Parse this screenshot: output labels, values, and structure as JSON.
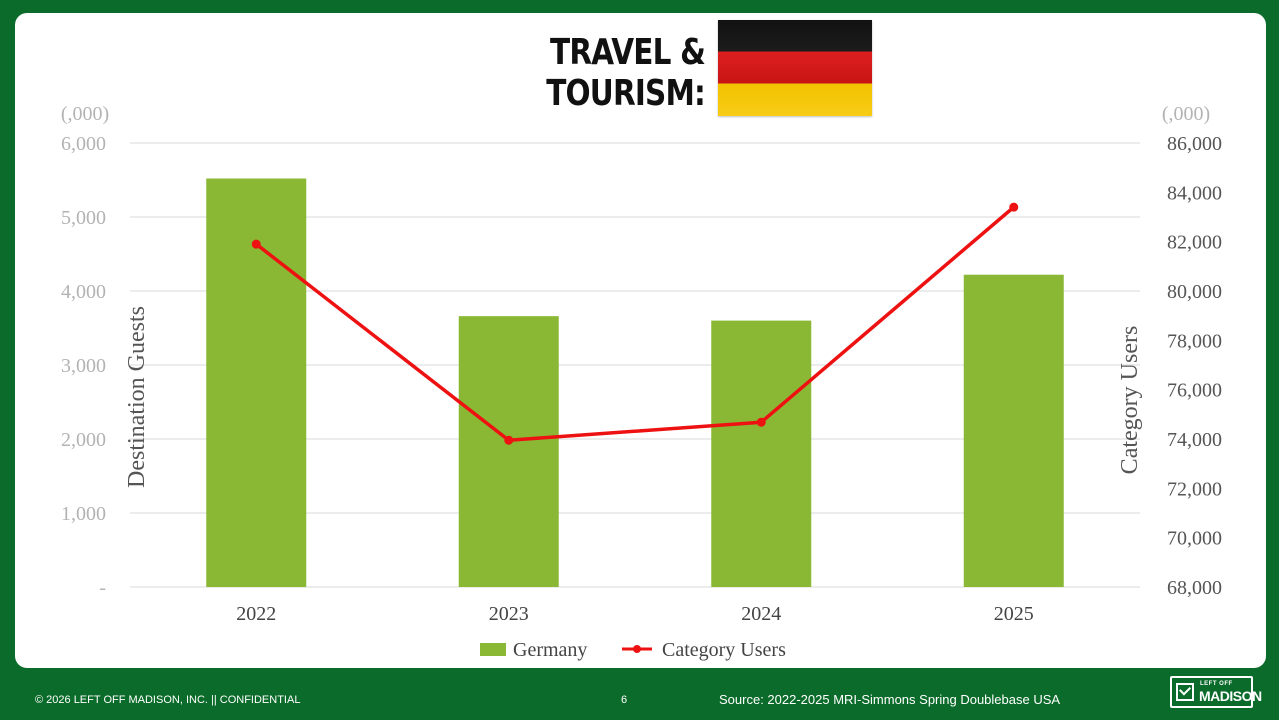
{
  "slide": {
    "title": "TRAVEL & TOURISM:",
    "flag_icon": "germany-flag-icon"
  },
  "chart_data": {
    "type": "bar",
    "categories": [
      "2022",
      "2023",
      "2024",
      "2025"
    ],
    "series": [
      {
        "name": "Germany",
        "kind": "bar",
        "axis": "left",
        "color": "#8ab734",
        "values": [
          5520,
          3660,
          3600,
          4220
        ]
      },
      {
        "name": "Category Users",
        "kind": "line",
        "axis": "right",
        "color": "#ee1111",
        "values": [
          81900,
          73950,
          74680,
          83400
        ]
      }
    ],
    "y_left": {
      "label": "Destination Guests",
      "unit_label": "(,000)",
      "range": [
        0,
        6000
      ],
      "ticks": [
        0,
        1000,
        2000,
        3000,
        4000,
        5000,
        6000
      ],
      "tick_labels": [
        "-",
        "1,000",
        "2,000",
        "3,000",
        "4,000",
        "5,000",
        "6,000"
      ]
    },
    "y_right": {
      "label": "Category Users",
      "unit_label": "(,000)",
      "range": [
        68000,
        86000
      ],
      "ticks": [
        68000,
        70000,
        72000,
        74000,
        76000,
        78000,
        80000,
        82000,
        84000,
        86000
      ],
      "tick_labels": [
        "68,000",
        "70,000",
        "72,000",
        "74,000",
        "76,000",
        "78,000",
        "80,000",
        "82,000",
        "84,000",
        "86,000"
      ]
    },
    "grid": true,
    "legend_position": "bottom"
  },
  "footer": {
    "copyright": "© 2026 LEFT OFF MADISON, INC.  ||  CONFIDENTIAL",
    "page_number": "6",
    "source": "Source: 2022-2025 MRI-Simmons Spring Doublebase USA",
    "logo_top": "LEFT OFF",
    "logo_bottom": "MADISON"
  }
}
